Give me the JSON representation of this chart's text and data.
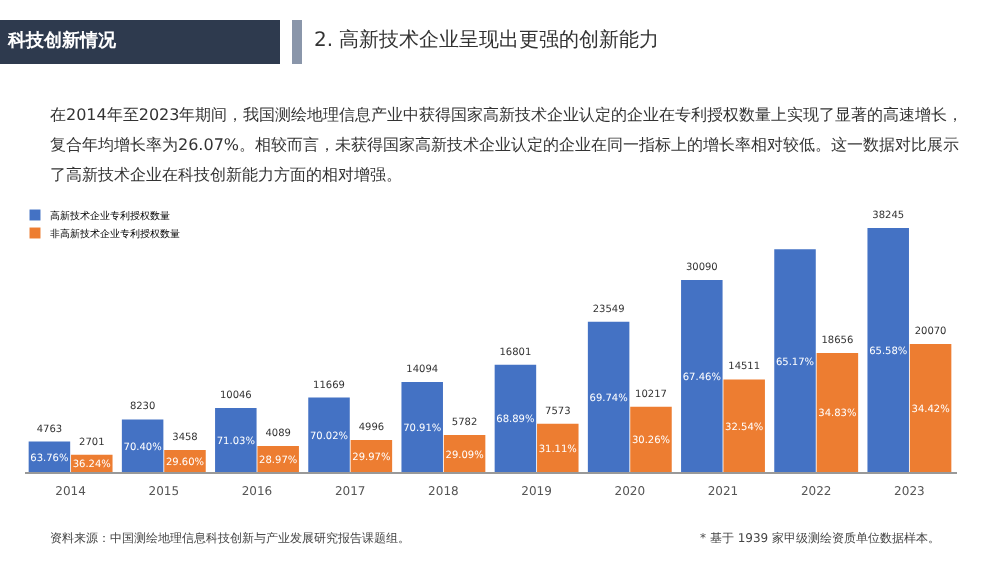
{
  "chart_data": {
    "type": "bar",
    "title": "2. 高新技术企业呈现出更强的创新能力",
    "subtitle": "在2014年至2023年期间，我国测绘地理信息产业中获得国家高新技术企业认定的企业在专利授权数量上实现了显著的高速增长，复合年均增长率为26.07%。相较而言，未获得国家高新技术企业认定的企业在同一指标上的增长率相对较低。这一数据对比展示了高新技术企业在科技创新能力方面的相对增强。",
    "categories": [
      "2014",
      "2015",
      "2016",
      "2017",
      "2018",
      "2019",
      "2020",
      "2021",
      "2022",
      "2023"
    ],
    "series": [
      {
        "name": "高新技术企业专利授权数量",
        "color": "#4472c4",
        "values": [
          4763,
          8230,
          10046,
          11669,
          14094,
          16801,
          23549,
          30090,
          34907,
          38245
        ],
        "value_labels": [
          "4763",
          "8230",
          "10046",
          "11669",
          "14094",
          "16801",
          "23549",
          "30090",
          null,
          "38245"
        ]
      },
      {
        "name": "非高新技术企业专利授权数量",
        "color": "#ed7d31",
        "values": [
          2701,
          3458,
          4089,
          4996,
          5782,
          7573,
          10217,
          14511,
          18656,
          20070
        ],
        "value_labels": [
          "2701",
          "3458",
          "4089",
          "4996",
          "5782",
          "7573",
          "10217",
          "14511",
          "18656",
          "20070"
        ]
      }
    ],
    "ylim": [
      0,
      42000
    ],
    "tick_labels": "x",
    "legend": "top left",
    "annotations": [
      "科技创新情况",
      {
        "text": "63.76%",
        "x": "2014",
        "y": 2381.5
      },
      {
        "text": "36.24%",
        "x": "2014",
        "y": 1350.5
      },
      {
        "text": "70.40%",
        "x": "2015",
        "y": 4115
      },
      {
        "text": "29.60%",
        "x": "2015",
        "y": 1729
      },
      {
        "text": "71.03%",
        "x": "2016",
        "y": 5023
      },
      {
        "text": "28.97%",
        "x": "2016",
        "y": 2044.5
      },
      {
        "text": "70.02%",
        "x": "2017",
        "y": 5834.5
      },
      {
        "text": "29.97%",
        "x": "2017",
        "y": 2498
      },
      {
        "text": "70.91%",
        "x": "2018",
        "y": 7047
      },
      {
        "text": "29.09%",
        "x": "2018",
        "y": 2891
      },
      {
        "text": "68.89%",
        "x": "2019",
        "y": 8400.5
      },
      {
        "text": "31.11%",
        "x": "2019",
        "y": 3786.5
      },
      {
        "text": "69.74%",
        "x": "2020",
        "y": 11774.5
      },
      {
        "text": "30.26%",
        "x": "2020",
        "y": 5108.5
      },
      {
        "text": "67.46%",
        "x": "2021",
        "y": 15045
      },
      {
        "text": "32.54%",
        "x": "2021",
        "y": 7255.5
      },
      {
        "text": "65.17%",
        "x": "2022",
        "y": 17453.5
      },
      {
        "text": "34.83%",
        "x": "2022",
        "y": 9328
      },
      {
        "text": "65.58%",
        "x": "2023",
        "y": 19122.5
      },
      {
        "text": "34.42%",
        "x": "2023",
        "y": 10035
      },
      "资料来源：中国测绘地理信息科技创新与产业发展研究报告课题组。",
      "* 基于 1939 家甲级测绘资质单位数据样本。"
    ]
  }
}
